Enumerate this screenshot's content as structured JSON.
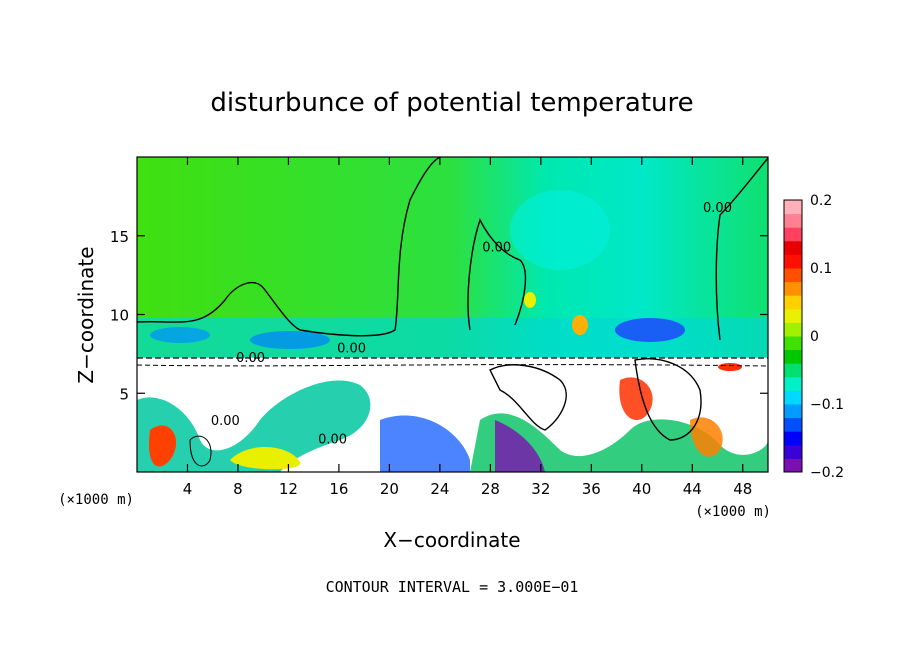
{
  "chart_data": {
    "type": "heatmap",
    "title": "disturbunce of potential temperature",
    "xlabel": "X−coordinate",
    "ylabel": "Z−coordinate",
    "x_unit": "(×1000 m)",
    "y_unit": "(×1000 m)",
    "xlim": [
      0,
      50
    ],
    "ylim": [
      0,
      20
    ],
    "x_ticks": [
      "4",
      "8",
      "12",
      "16",
      "20",
      "24",
      "28",
      "32",
      "36",
      "40",
      "44",
      "48"
    ],
    "x_tick_values": [
      4,
      8,
      12,
      16,
      20,
      24,
      28,
      32,
      36,
      40,
      44,
      48
    ],
    "y_ticks": [
      "5",
      "10",
      "15"
    ],
    "y_tick_values": [
      5,
      10,
      15
    ],
    "contour_labels": [
      {
        "text": "0.00",
        "x": 17,
        "z": 7.6
      },
      {
        "text": "0.00",
        "x": 28.5,
        "z": 14
      },
      {
        "text": "0.00",
        "x": 46,
        "z": 16.5
      },
      {
        "text": "0.00",
        "x": 9,
        "z": 7.0
      },
      {
        "text": "0.00",
        "x": 7,
        "z": 3.0
      },
      {
        "text": "0.00",
        "x": 15.5,
        "z": 1.8
      }
    ],
    "colorbar": {
      "range": [
        -0.2,
        0.2
      ],
      "tick_labels": [
        "0.2",
        "0.1",
        "0",
        "−0.1",
        "−0.2"
      ],
      "tick_values": [
        0.2,
        0.1,
        0,
        -0.1,
        -0.2
      ],
      "colors": [
        "#7a10b0",
        "#3a00d8",
        "#0000ff",
        "#0050ff",
        "#009cff",
        "#00d8ff",
        "#00f0c8",
        "#00e070",
        "#00c800",
        "#40e000",
        "#a0f000",
        "#e8f000",
        "#ffd000",
        "#ff9000",
        "#ff5000",
        "#ff1000",
        "#e80000",
        "#ff4060",
        "#ff8090",
        "#ffb0b8"
      ]
    },
    "footnote": "CONTOUR INTERVAL = 3.000E−01"
  }
}
